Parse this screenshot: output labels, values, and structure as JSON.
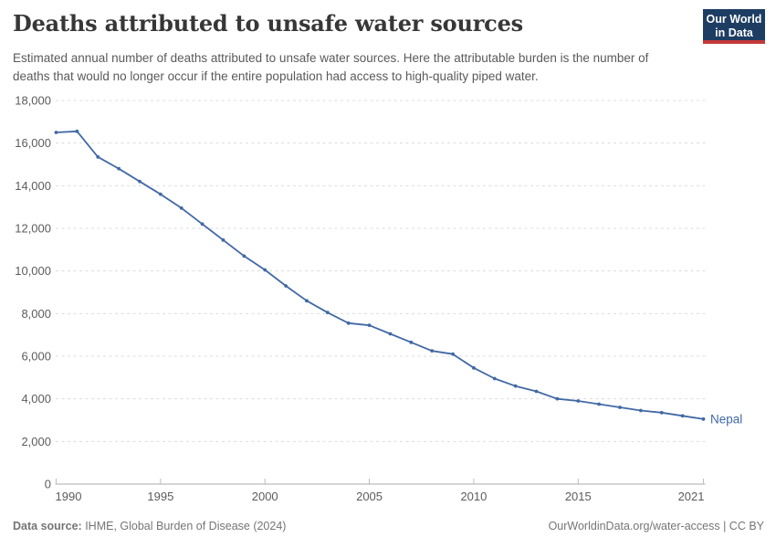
{
  "header": {
    "title": "Deaths attributed to unsafe water sources",
    "subtitle": "Estimated annual number of deaths attributed to unsafe water sources. Here the attributable burden is the number of deaths that would no longer occur if the entire population had access to high-quality piped water."
  },
  "logo": {
    "line1": "Our World",
    "line2": "in Data",
    "bg_color": "#1d3d63",
    "accent_color": "#c53a3a"
  },
  "chart_data": {
    "type": "line",
    "title": "Deaths attributed to unsafe water sources",
    "xlabel": "",
    "ylabel": "",
    "xlim": [
      1990,
      2021
    ],
    "ylim": [
      0,
      18000
    ],
    "xticks": [
      1990,
      1995,
      2000,
      2005,
      2010,
      2015,
      2021
    ],
    "yticks": [
      0,
      2000,
      4000,
      6000,
      8000,
      10000,
      12000,
      14000,
      16000,
      18000
    ],
    "grid": "horizontal-dashed",
    "legend_position": "end-of-line-label",
    "x": [
      1990,
      1991,
      1992,
      1993,
      1994,
      1995,
      1996,
      1997,
      1998,
      1999,
      2000,
      2001,
      2002,
      2003,
      2004,
      2005,
      2006,
      2007,
      2008,
      2009,
      2010,
      2011,
      2012,
      2013,
      2014,
      2015,
      2016,
      2017,
      2018,
      2019,
      2020,
      2021
    ],
    "series": [
      {
        "name": "Nepal",
        "color": "#4269a5",
        "values": [
          16500,
          16550,
          15350,
          14800,
          14200,
          13600,
          12950,
          12200,
          11450,
          10700,
          10050,
          9300,
          8600,
          8050,
          7550,
          7450,
          7050,
          6650,
          6250,
          6100,
          5450,
          4950,
          4600,
          4350,
          4000,
          3900,
          3750,
          3600,
          3450,
          3350,
          3200,
          3050
        ]
      }
    ],
    "colors": {
      "gridline": "#dcdcdc",
      "axis": "#bcbcbc",
      "tick_label": "#5c5c5c"
    }
  },
  "footer": {
    "source_label": "Data source:",
    "source_text": " IHME, Global Burden of Disease (2024)",
    "credit": "OurWorldinData.org/water-access | CC BY"
  }
}
